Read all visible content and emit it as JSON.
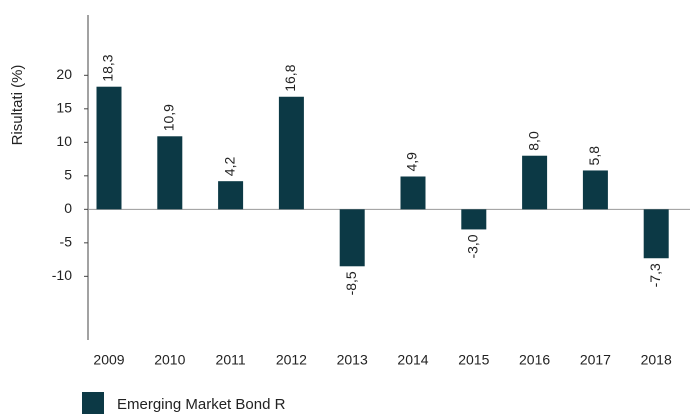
{
  "chart_data": {
    "type": "bar",
    "y_label": "Risultati (%)",
    "categories": [
      "2009",
      "2010",
      "2011",
      "2012",
      "2013",
      "2014",
      "2015",
      "2016",
      "2017",
      "2018"
    ],
    "series": [
      {
        "name": "Emerging Market Bond R",
        "color": "#0c3945",
        "values": [
          18.3,
          10.9,
          4.2,
          16.8,
          -8.5,
          4.9,
          -3.0,
          8.0,
          5.8,
          -7.3
        ],
        "value_labels": [
          "18,3",
          "10,9",
          "4,2",
          "16,8",
          "-8,5",
          "4,9",
          "-3,0",
          "8,0",
          "5,8",
          "-7,3"
        ]
      }
    ],
    "ylim": [
      -19.5,
      29
    ],
    "yticks": [
      20,
      15,
      10,
      5,
      0,
      -5,
      -10
    ],
    "grid": false
  }
}
